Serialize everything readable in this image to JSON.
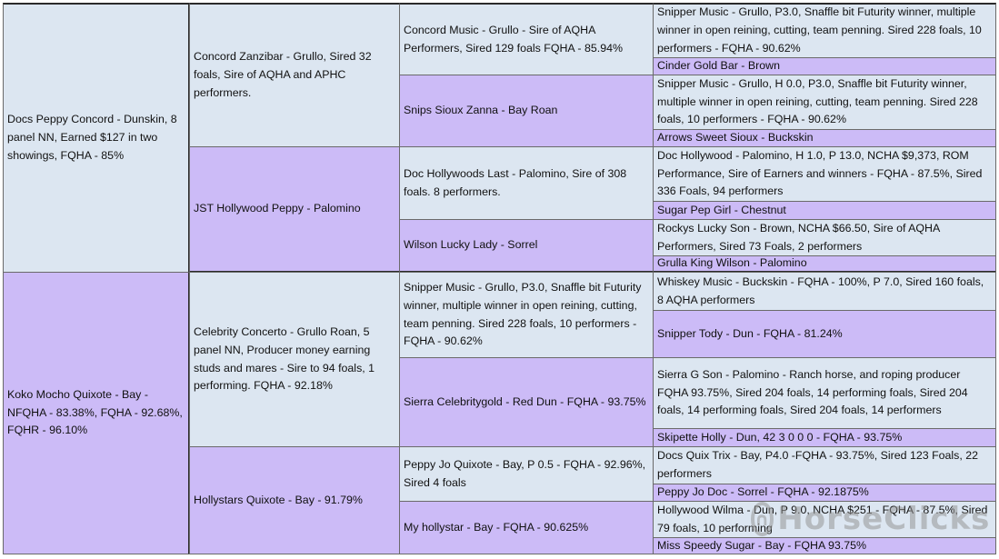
{
  "pedigree": {
    "gen1": [
      {
        "text": "Docs Peppy Concord - Dunskin, 8 panel NN, Earned $127 in two showings, FQHA - 85%"
      },
      {
        "text": "Koko Mocho Quixote - Bay - NFQHA - 83.38%, FQHA - 92.68%, FQHR - 96.10%"
      }
    ],
    "gen2": [
      {
        "text": "Concord Zanzibar - Grullo, Sired 32 foals, Sire of AQHA and APHC performers."
      },
      {
        "text": "JST Hollywood Peppy - Palomino"
      },
      {
        "text": "Celebrity Concerto - Grullo Roan, 5 panel NN, Producer money earning studs and mares - Sire to 94 foals, 1 performing. FQHA - 92.18%"
      },
      {
        "text": "Hollystars Quixote - Bay - 91.79%"
      }
    ],
    "gen3": [
      {
        "text": "Concord Music - Grullo - Sire of AQHA Performers, Sired 129 foals FQHA - 85.94%"
      },
      {
        "text": "Snips Sioux Zanna - Bay Roan"
      },
      {
        "text": "Doc Hollywoods Last - Palomino, Sire of 308 foals. 8 performers."
      },
      {
        "text": "Wilson Lucky Lady - Sorrel"
      },
      {
        "text": "Snipper Music - Grullo, P3.0, Snaffle bit Futurity winner, multiple winner in open reining, cutting, team penning. Sired 228 foals, 10 performers - FQHA - 90.62%"
      },
      {
        "text": "Sierra Celebritygold - Red Dun - FQHA - 93.75%"
      },
      {
        "text": "Peppy Jo Quixote - Bay, P 0.5 -  FQHA - 92.96%, Sired 4 foals"
      },
      {
        "text": "My hollystar - Bay - FQHA - 90.625%"
      }
    ],
    "gen4": [
      {
        "text": "Snipper Music - Grullo, P3.0, Snaffle bit Futurity winner, multiple winner in open reining, cutting, team penning. Sired 228 foals, 10 performers - FQHA - 90.62%"
      },
      {
        "text": "Cinder Gold Bar - Brown"
      },
      {
        "text": "Snipper Music - Grullo, H 0.0, P3.0, Snaffle bit Futurity winner, multiple winner in open reining, cutting, team penning. Sired 228 foals, 10 performers - FQHA - 90.62%"
      },
      {
        "text": "Arrows Sweet Sioux - Buckskin"
      },
      {
        "text": "Doc Hollywood - Palomino, H 1.0, P 13.0, NCHA $9,373, ROM Performance, Sire of Earners and winners - FQHA - 87.5%, Sired 336 Foals, 94 performers"
      },
      {
        "text": "Sugar Pep Girl - Chestnut"
      },
      {
        "text": "Rockys Lucky Son - Brown, NCHA $66.50, Sire of AQHA Performers, Sired 73 Foals, 2 performers"
      },
      {
        "text": "Grulla King Wilson - Palomino"
      },
      {
        "text": "Whiskey Music - Buckskin - FQHA - 100%, P 7.0, Sired 160 foals, 8 AQHA performers"
      },
      {
        "text": "Snipper Tody - Dun - FQHA - 81.24%"
      },
      {
        "text": "Sierra G Son - Palomino - Ranch horse, and roping producer FQHA 93.75%, Sired 204 foals, 14 performing foals, Sired 204 foals, 14 performing foals, Sired 204 foals, 14 performers"
      },
      {
        "text": "Skipette Holly - Dun, 42 3 0 0 0 - FQHA - 93.75%"
      },
      {
        "text": "Docs Quix Trix - Bay, P4.0 -FQHA - 93.75%, Sired 123 Foals, 22 performers"
      },
      {
        "text": "Peppy Jo Doc - Sorrel - FQHA - 92.1875%"
      },
      {
        "text": "Hollywood Wilma - Dun, P 9.0, NCHA $251 - FQHA - 87.5%, Sired 79 foals, 10 performing"
      },
      {
        "text": "Miss Speedy Sugar - Bay - FQHA 93.75%"
      }
    ]
  },
  "watermark": {
    "text": "HorseClicks"
  },
  "colors": {
    "blue": "#dce6f1",
    "purple": "#ccbbf7",
    "border": "#6a6a6a"
  }
}
